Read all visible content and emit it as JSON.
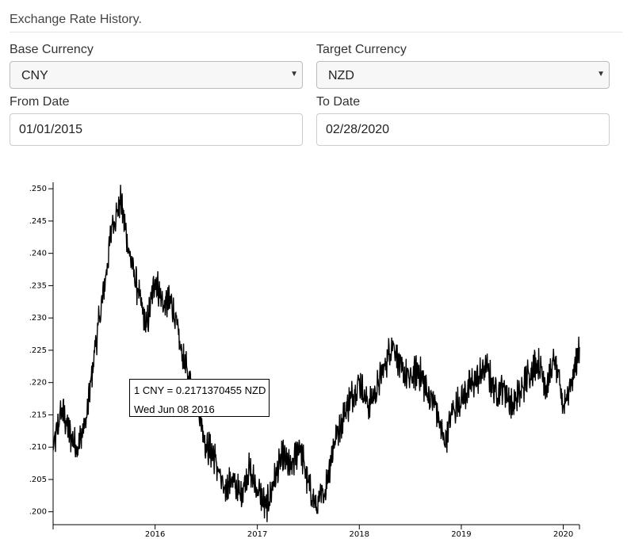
{
  "header": {
    "title": "Exchange Rate History."
  },
  "form": {
    "base_label": "Base Currency",
    "base_value": "CNY",
    "target_label": "Target Currency",
    "target_value": "NZD",
    "from_label": "From Date",
    "from_value": "01/01/2015",
    "to_label": "To Date",
    "to_value": "02/28/2020"
  },
  "tooltip": {
    "rate_text": "1 CNY = 0.2171370455 NZD",
    "date_text": "Wed Jun 08 2016"
  },
  "chart_data": {
    "type": "line",
    "title": "",
    "xlabel": "",
    "ylabel": "",
    "grid": false,
    "xlim": [
      "2015-01-01",
      "2020-02-28"
    ],
    "ylim": [
      0.198,
      0.251
    ],
    "y_ticks": [
      0.2,
      0.205,
      0.21,
      0.215,
      0.22,
      0.225,
      0.23,
      0.235,
      0.24,
      0.245,
      0.25
    ],
    "y_tick_labels": [
      ".200",
      ".205",
      ".210",
      ".215",
      ".220",
      ".225",
      ".230",
      ".235",
      ".240",
      ".245",
      ".250"
    ],
    "x_ticks": [
      "2016-01-01",
      "2017-01-01",
      "2018-01-01",
      "2019-01-01",
      "2020-01-01"
    ],
    "x_tick_labels": [
      "2016",
      "2017",
      "2018",
      "2019",
      "2020"
    ],
    "series": [
      {
        "x": [
          "2015-01-01",
          "2015-02-01",
          "2015-03-01",
          "2015-04-01",
          "2015-05-01",
          "2015-06-01",
          "2015-07-01",
          "2015-08-01",
          "2015-09-01",
          "2015-10-01",
          "2015-11-01",
          "2015-12-01",
          "2016-01-01",
          "2016-02-01",
          "2016-03-01",
          "2016-04-01",
          "2016-05-01",
          "2016-06-01",
          "2016-07-01",
          "2016-08-01",
          "2016-09-01",
          "2016-10-01",
          "2016-11-01",
          "2016-12-01",
          "2017-01-01",
          "2017-02-01",
          "2017-03-01",
          "2017-04-01",
          "2017-05-01",
          "2017-06-01",
          "2017-07-01",
          "2017-08-01",
          "2017-09-01",
          "2017-10-01",
          "2017-11-01",
          "2017-12-01",
          "2018-01-01",
          "2018-02-01",
          "2018-03-01",
          "2018-04-01",
          "2018-05-01",
          "2018-06-01",
          "2018-07-01",
          "2018-08-01",
          "2018-09-01",
          "2018-10-01",
          "2018-11-01",
          "2018-12-01",
          "2019-01-01",
          "2019-02-01",
          "2019-03-01",
          "2019-04-01",
          "2019-05-01",
          "2019-06-01",
          "2019-07-01",
          "2019-08-01",
          "2019-09-01",
          "2019-10-01",
          "2019-11-01",
          "2019-12-01",
          "2020-01-01",
          "2020-02-01",
          "2020-02-28"
        ],
        "values": [
          0.2095,
          0.216,
          0.212,
          0.21,
          0.2145,
          0.2255,
          0.234,
          0.2445,
          0.248,
          0.24,
          0.234,
          0.2285,
          0.236,
          0.232,
          0.2325,
          0.2255,
          0.2205,
          0.2171,
          0.2105,
          0.2085,
          0.2035,
          0.205,
          0.2025,
          0.2065,
          0.2035,
          0.2005,
          0.2045,
          0.2085,
          0.2065,
          0.2105,
          0.2045,
          0.2005,
          0.2035,
          0.2105,
          0.2145,
          0.2175,
          0.2205,
          0.2165,
          0.2185,
          0.2225,
          0.2265,
          0.2215,
          0.2205,
          0.222,
          0.2185,
          0.2165,
          0.2105,
          0.2155,
          0.2175,
          0.2195,
          0.2205,
          0.2225,
          0.2185,
          0.2195,
          0.2165,
          0.2185,
          0.2215,
          0.2235,
          0.2195,
          0.2235,
          0.2165,
          0.2205,
          0.2255
        ]
      }
    ]
  }
}
